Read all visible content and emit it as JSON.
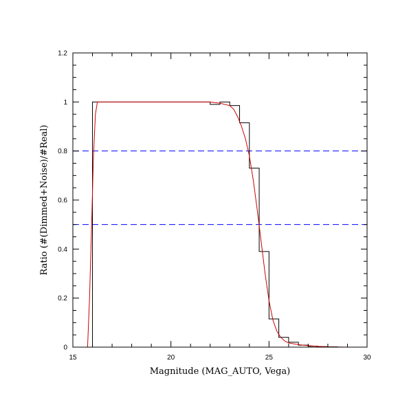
{
  "chart_data": {
    "type": "line",
    "title": "",
    "xlabel": "Magnitude (MAG_AUTO, Vega)",
    "ylabel": "Ratio (#(Dimmed+Noise)/#Real)",
    "xlim": [
      15,
      30
    ],
    "ylim": [
      0,
      1.2
    ],
    "xticks": [
      15,
      20,
      25,
      30
    ],
    "xtick_labels": [
      "15",
      "20",
      "25",
      "30"
    ],
    "yticks": [
      0,
      0.2,
      0.4,
      0.6,
      0.8,
      1.0,
      1.2
    ],
    "ytick_labels": [
      "0",
      "0.2",
      "0.4",
      "0.6",
      "0.8",
      "1",
      "1.2"
    ],
    "grid": false,
    "reference_lines": [
      {
        "y": 0.8,
        "style": "dashed",
        "color": "#0000ff"
      },
      {
        "y": 0.5,
        "style": "dashed",
        "color": "#0000ff"
      }
    ],
    "series": [
      {
        "kind": "histogram-step",
        "color": "#000000",
        "bin_edges": [
          15.5,
          16.0,
          16.5,
          17.0,
          17.5,
          18.0,
          18.5,
          19.0,
          19.5,
          20.0,
          20.5,
          21.0,
          21.5,
          22.0,
          22.5,
          23.0,
          23.5,
          24.0,
          24.5,
          25.0,
          25.5,
          26.0,
          26.5,
          27.0,
          27.5,
          28.0,
          28.5,
          29.0,
          29.5,
          30.0
        ],
        "values": [
          0,
          1.0,
          1.0,
          1.0,
          1.0,
          1.0,
          1.0,
          1.0,
          1.0,
          1.0,
          1.0,
          1.0,
          1.0,
          0.99,
          1.0,
          0.985,
          0.915,
          0.73,
          0.39,
          0.115,
          0.04,
          0.02,
          0.008,
          0.004,
          0.002,
          0.001,
          0.0,
          0.0,
          0.0
        ]
      },
      {
        "kind": "fit",
        "color": "#cc0000",
        "x": [
          15.75,
          15.85,
          15.95,
          16.05,
          16.15,
          16.25,
          16.5,
          17.0,
          18.0,
          19.0,
          20.0,
          21.0,
          22.0,
          22.5,
          23.0,
          23.2,
          23.4,
          23.6,
          23.8,
          24.0,
          24.2,
          24.4,
          24.6,
          24.8,
          25.0,
          25.2,
          25.4,
          25.6,
          25.8,
          26.0,
          26.5,
          27.0,
          27.5,
          28.0,
          29.0,
          30.0
        ],
        "y": [
          0.0,
          0.2,
          0.48,
          0.78,
          0.95,
          1.0,
          1.0,
          1.0,
          1.0,
          1.0,
          1.0,
          1.0,
          1.0,
          0.995,
          0.985,
          0.97,
          0.94,
          0.9,
          0.85,
          0.78,
          0.68,
          0.56,
          0.43,
          0.3,
          0.19,
          0.11,
          0.065,
          0.04,
          0.025,
          0.017,
          0.01,
          0.006,
          0.003,
          0.001,
          0.0,
          0.0
        ]
      }
    ]
  }
}
